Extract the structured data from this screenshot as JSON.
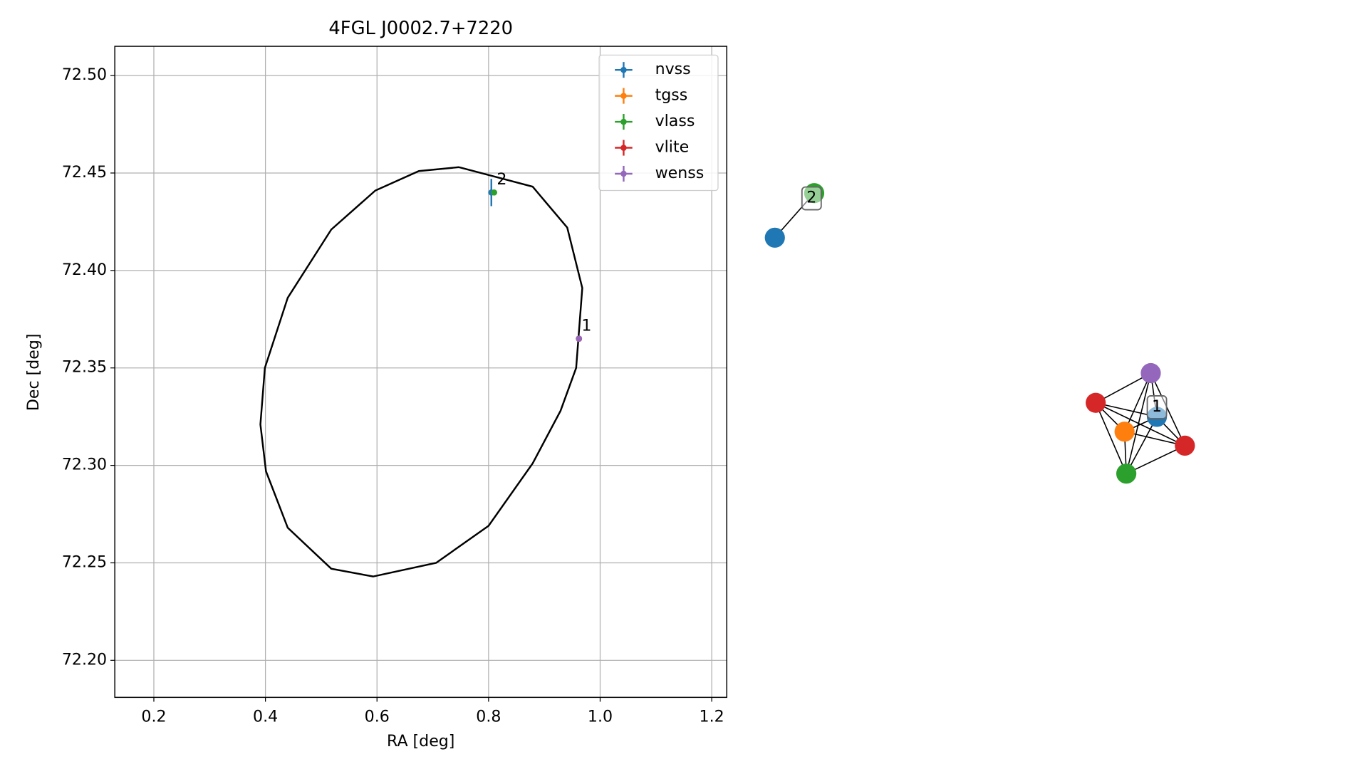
{
  "chart_data": {
    "type": "scatter",
    "title": "4FGL J0002.7+7220",
    "xlabel": "RA [deg]",
    "ylabel": "Dec [deg]",
    "xlim": [
      0.13,
      1.227
    ],
    "ylim": [
      72.181,
      72.515
    ],
    "xticks": [
      0.2,
      0.4,
      0.6,
      0.8,
      {
        "value": 1.0,
        "label": "1.0"
      },
      1.2
    ],
    "yticks": [
      {
        "value": 72.2,
        "label": "72.20"
      },
      {
        "value": 72.25,
        "label": "72.25"
      },
      {
        "value": 72.3,
        "label": "72.30"
      },
      {
        "value": 72.35,
        "label": "72.35"
      },
      {
        "value": 72.4,
        "label": "72.40"
      },
      {
        "value": 72.45,
        "label": "72.45"
      },
      {
        "value": 72.5,
        "label": "72.50"
      }
    ],
    "grid": true,
    "legend": "upper right",
    "ellipse": {
      "color": "#000000",
      "x": [
        0.747,
        0.879,
        0.941,
        0.968,
        0.957,
        0.929,
        0.879,
        0.8,
        0.706,
        0.593,
        0.518,
        0.44,
        0.401,
        0.391,
        0.399,
        0.44,
        0.518,
        0.597,
        0.675,
        0.747
      ],
      "y": [
        72.453,
        72.443,
        72.422,
        72.391,
        72.35,
        72.328,
        72.301,
        72.269,
        72.25,
        72.243,
        72.247,
        72.268,
        72.297,
        72.321,
        72.35,
        72.386,
        72.421,
        72.441,
        72.451,
        72.453
      ]
    },
    "series": [
      {
        "name": "nvss",
        "color": "#1f77b4",
        "x": [
          0.805,
          0.962
        ],
        "values": [
          72.44,
          72.365
        ],
        "yerr": [
          0.007,
          0.001
        ]
      },
      {
        "name": "tgss",
        "color": "#ff7f0e",
        "x": [
          0.962
        ],
        "values": [
          72.365
        ]
      },
      {
        "name": "vlass",
        "color": "#2ca02c",
        "x": [
          0.81,
          0.962
        ],
        "values": [
          72.44,
          72.365
        ]
      },
      {
        "name": "vlite",
        "color": "#d62728",
        "x": [
          0.962,
          0.962
        ],
        "values": [
          72.365,
          72.365
        ]
      },
      {
        "name": "wenss",
        "color": "#9467bd",
        "x": [
          0.962
        ],
        "values": [
          72.365
        ]
      }
    ],
    "point_labels": [
      {
        "text": "1",
        "x": 0.962,
        "y": 72.365
      },
      {
        "text": "2",
        "x": 0.81,
        "y": 72.44
      }
    ]
  },
  "graph": {
    "labels": [
      "1",
      "2"
    ]
  }
}
